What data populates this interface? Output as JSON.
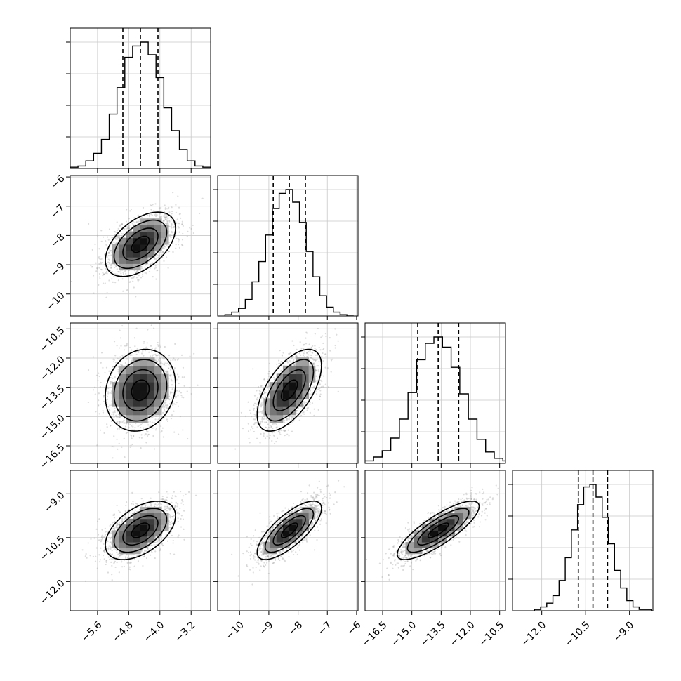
{
  "chart_data": {
    "type": "corner",
    "title": "",
    "parameters": [
      "",
      "",
      "",
      ""
    ],
    "axes": [
      {
        "range": [
          -6.3,
          -2.7
        ],
        "ticks": [
          -5.6,
          -4.8,
          -4.0,
          -3.2
        ],
        "tick_labels": [
          "−5.6",
          "−4.8",
          "−4.0",
          "−3.2"
        ]
      },
      {
        "range": [
          -10.75,
          -5.95
        ],
        "ticks": [
          -10,
          -9,
          -8,
          -7,
          -6
        ],
        "tick_labels": [
          "−10",
          "−9",
          "−8",
          "−7",
          "−6"
        ]
      },
      {
        "range": [
          -17.4,
          -10.2
        ],
        "ticks": [
          -16.5,
          -15.0,
          -13.5,
          -12.0,
          -10.5
        ],
        "tick_labels": [
          "−16.5",
          "−15.0",
          "−13.5",
          "−12.0",
          "−10.5"
        ]
      },
      {
        "range": [
          -13.0,
          -8.2
        ],
        "ticks": [
          -12.0,
          -10.5,
          -9.0
        ],
        "tick_labels": [
          "−12.0",
          "−10.5",
          "−9.0"
        ]
      }
    ],
    "marginals": [
      {
        "mean": -4.5,
        "sd": 0.45,
        "quantiles": [
          -4.95,
          -4.5,
          -4.05
        ],
        "counts": [
          1,
          2,
          6,
          12,
          23,
          43,
          64,
          88,
          97,
          100,
          90,
          72,
          48,
          30,
          15,
          6,
          2,
          1
        ]
      },
      {
        "mean": -8.3,
        "sd": 0.55,
        "quantiles": [
          -8.85,
          -8.3,
          -7.75
        ],
        "counts": [
          1,
          3,
          6,
          13,
          27,
          43,
          64,
          85,
          97,
          100,
          90,
          74,
          51,
          31,
          16,
          7,
          3,
          1,
          0
        ]
      },
      {
        "mean": -13.65,
        "sd": 1.05,
        "quantiles": [
          -14.7,
          -13.65,
          -12.6
        ],
        "counts": [
          1,
          2,
          5,
          10,
          20,
          35,
          56,
          82,
          95,
          100,
          92,
          76,
          55,
          35,
          19,
          9,
          4,
          2,
          1
        ]
      },
      {
        "mean": -10.25,
        "sd": 0.5,
        "quantiles": [
          -10.75,
          -10.25,
          -9.75
        ],
        "counts": [
          1,
          3,
          6,
          12,
          24,
          42,
          64,
          84,
          98,
          100,
          90,
          74,
          53,
          32,
          18,
          8,
          3,
          1,
          1
        ]
      }
    ],
    "correlations": {
      "1-0": 0.5,
      "2-0": 0.15,
      "2-1": 0.6,
      "3-0": 0.5,
      "3-1": 0.75,
      "3-2": 0.82
    },
    "quantile_lines": "dashed",
    "contour_levels": 3,
    "grid": true,
    "legend": "none"
  }
}
